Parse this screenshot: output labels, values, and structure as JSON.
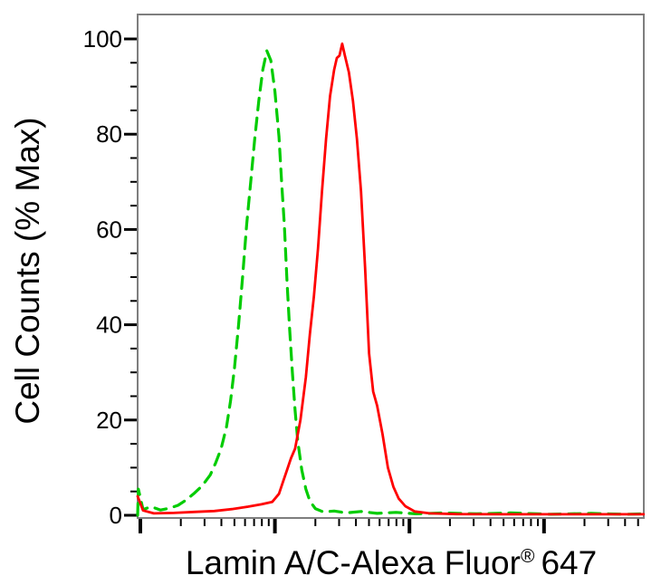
{
  "figure": {
    "background": "#ffffff",
    "frame_color": "#7e7e7e",
    "tick_color": "#000000"
  },
  "chart_data": {
    "type": "line",
    "subtype": "flow-cytometry-overlay-histogram",
    "title": "",
    "grid": false,
    "legend": false,
    "x_axis": {
      "label_main": "Lamin A/C-Alexa Fluor",
      "label_sup": "®",
      "label_suffix": "647",
      "scale": "log10",
      "range_decades": [
        -0.02,
        3.74
      ],
      "major_tick_decades": [
        0,
        1,
        2,
        3
      ],
      "minor_tick_rule": "log positions 2-9 within each decade",
      "numeric_tick_labels_shown": false
    },
    "y_axis": {
      "label": "Cell Counts (% Max)",
      "range": [
        0,
        105
      ],
      "major_ticks": [
        0,
        20,
        40,
        60,
        80,
        100
      ],
      "tick_labels": [
        "0",
        "20",
        "40",
        "60",
        "80",
        "100"
      ],
      "minor_tick_step": 5
    },
    "series": [
      {
        "name": "green-dashed-control",
        "color": "#00cc00",
        "line_style": "dashed",
        "points": [
          [
            -0.02,
            0
          ],
          [
            -0.015,
            5.5
          ],
          [
            0.02,
            1.2
          ],
          [
            0.08,
            1.8
          ],
          [
            0.15,
            1.1
          ],
          [
            0.22,
            1.5
          ],
          [
            0.28,
            2.1
          ],
          [
            0.34,
            3.2
          ],
          [
            0.4,
            4.6
          ],
          [
            0.46,
            6.2
          ],
          [
            0.52,
            8.5
          ],
          [
            0.56,
            11
          ],
          [
            0.6,
            14
          ],
          [
            0.64,
            18.5
          ],
          [
            0.67,
            24
          ],
          [
            0.7,
            31
          ],
          [
            0.73,
            40
          ],
          [
            0.76,
            50
          ],
          [
            0.79,
            61
          ],
          [
            0.82,
            70
          ],
          [
            0.85,
            79
          ],
          [
            0.88,
            87
          ],
          [
            0.91,
            93.5
          ],
          [
            0.94,
            97.5
          ],
          [
            0.97,
            95.5
          ],
          [
            1.0,
            89
          ],
          [
            1.03,
            79.5
          ],
          [
            1.05,
            70
          ],
          [
            1.07,
            61
          ],
          [
            1.09,
            49
          ],
          [
            1.11,
            39
          ],
          [
            1.13,
            30
          ],
          [
            1.15,
            22
          ],
          [
            1.17,
            15.5
          ],
          [
            1.2,
            9.5
          ],
          [
            1.23,
            5.5
          ],
          [
            1.26,
            3.0
          ],
          [
            1.3,
            1.4
          ],
          [
            1.36,
            0.7
          ],
          [
            1.44,
            0.9
          ],
          [
            1.53,
            0.5
          ],
          [
            1.64,
            0.8
          ],
          [
            1.76,
            0.4
          ],
          [
            1.9,
            0.6
          ],
          [
            2.05,
            0.3
          ],
          [
            2.25,
            0.5
          ],
          [
            2.5,
            0.3
          ],
          [
            2.75,
            0.5
          ],
          [
            3.05,
            0.2
          ],
          [
            3.35,
            0.4
          ],
          [
            3.6,
            0.2
          ],
          [
            3.74,
            0.3
          ]
        ]
      },
      {
        "name": "red-solid-stained",
        "color": "#ff0000",
        "line_style": "solid",
        "points": [
          [
            -0.02,
            4
          ],
          [
            0.02,
            1.0
          ],
          [
            0.1,
            0.4
          ],
          [
            0.25,
            0.5
          ],
          [
            0.4,
            0.7
          ],
          [
            0.55,
            0.9
          ],
          [
            0.68,
            1.3
          ],
          [
            0.8,
            1.8
          ],
          [
            0.9,
            2.3
          ],
          [
            0.98,
            2.8
          ],
          [
            1.03,
            4.5
          ],
          [
            1.06,
            7
          ],
          [
            1.09,
            9.5
          ],
          [
            1.12,
            12
          ],
          [
            1.15,
            14
          ],
          [
            1.19,
            20
          ],
          [
            1.23,
            29
          ],
          [
            1.26,
            38
          ],
          [
            1.29,
            46
          ],
          [
            1.32,
            56
          ],
          [
            1.35,
            68
          ],
          [
            1.38,
            79
          ],
          [
            1.41,
            88
          ],
          [
            1.44,
            93.5
          ],
          [
            1.46,
            96
          ],
          [
            1.48,
            96.5
          ],
          [
            1.5,
            99
          ],
          [
            1.52,
            96.5
          ],
          [
            1.55,
            93
          ],
          [
            1.58,
            87
          ],
          [
            1.61,
            79
          ],
          [
            1.64,
            68
          ],
          [
            1.67,
            52
          ],
          [
            1.7,
            34
          ],
          [
            1.73,
            26
          ],
          [
            1.76,
            23
          ],
          [
            1.8,
            17
          ],
          [
            1.84,
            10
          ],
          [
            1.88,
            6
          ],
          [
            1.92,
            3.5
          ],
          [
            1.97,
            1.9
          ],
          [
            2.04,
            0.8
          ],
          [
            2.15,
            0.4
          ],
          [
            2.35,
            0.25
          ],
          [
            2.7,
            0.2
          ],
          [
            3.1,
            0.2
          ],
          [
            3.5,
            0.2
          ],
          [
            3.74,
            0.2
          ]
        ]
      }
    ]
  }
}
